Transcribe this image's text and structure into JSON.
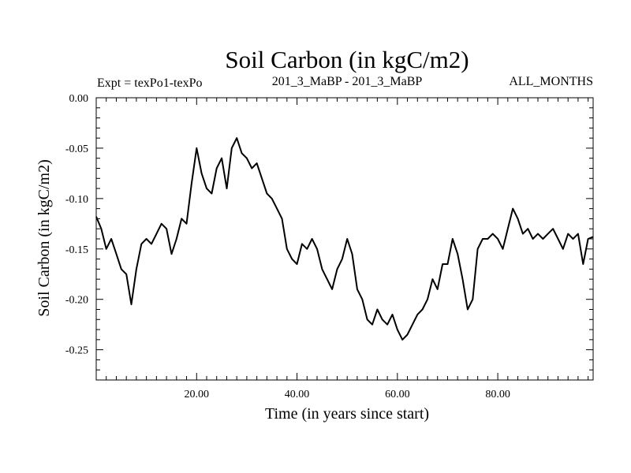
{
  "chart_data": {
    "type": "line",
    "title": "Soil Carbon (in kgC/m2)",
    "subtitle_left": "Expt = texPo1-texPo",
    "subtitle_center": "201_3_MaBP - 201_3_MaBP",
    "subtitle_right": "ALL_MONTHS",
    "xlabel": "Time (in years since start)",
    "ylabel": "Soil Carbon (in kgC/m2)",
    "xlim": [
      0,
      99
    ],
    "ylim": [
      -0.28,
      0.0
    ],
    "x_ticks": [
      20,
      40,
      60,
      80
    ],
    "x_tick_labels": [
      "20.00",
      "40.00",
      "60.00",
      "80.00"
    ],
    "y_ticks": [
      0.0,
      -0.05,
      -0.1,
      -0.15,
      -0.2,
      -0.25
    ],
    "y_tick_labels": [
      "0.00",
      "-0.05",
      "-0.10",
      "-0.15",
      "-0.20",
      "-0.25"
    ],
    "grid": false,
    "line_color": "#000000",
    "series": [
      {
        "x": [
          0,
          1,
          2,
          3,
          4,
          5,
          6,
          7,
          8,
          9,
          10,
          11,
          12,
          13,
          14,
          15,
          16,
          17,
          18,
          19,
          20,
          21,
          22,
          23,
          24,
          25,
          26,
          27,
          28,
          29,
          30,
          31,
          32,
          33,
          34,
          35,
          36,
          37,
          38,
          39,
          40,
          41,
          42,
          43,
          44,
          45,
          46,
          47,
          48,
          49,
          50,
          51,
          52,
          53,
          54,
          55,
          56,
          57,
          58,
          59,
          60,
          61,
          62,
          63,
          64,
          65,
          66,
          67,
          68,
          69,
          70,
          71,
          72,
          73,
          74,
          75,
          76,
          77,
          78,
          79,
          80,
          81,
          82,
          83,
          84,
          85,
          86,
          87,
          88,
          89,
          90,
          91,
          92,
          93,
          94,
          95,
          96,
          97,
          98,
          99
        ],
        "values": [
          -0.118,
          -0.13,
          -0.15,
          -0.14,
          -0.155,
          -0.17,
          -0.175,
          -0.205,
          -0.17,
          -0.145,
          -0.14,
          -0.145,
          -0.135,
          -0.125,
          -0.13,
          -0.155,
          -0.14,
          -0.12,
          -0.125,
          -0.085,
          -0.05,
          -0.075,
          -0.09,
          -0.095,
          -0.07,
          -0.06,
          -0.09,
          -0.05,
          -0.04,
          -0.055,
          -0.06,
          -0.07,
          -0.065,
          -0.08,
          -0.095,
          -0.1,
          -0.11,
          -0.12,
          -0.15,
          -0.16,
          -0.165,
          -0.145,
          -0.15,
          -0.14,
          -0.15,
          -0.17,
          -0.18,
          -0.19,
          -0.17,
          -0.16,
          -0.14,
          -0.155,
          -0.19,
          -0.2,
          -0.22,
          -0.225,
          -0.21,
          -0.22,
          -0.225,
          -0.215,
          -0.23,
          -0.24,
          -0.235,
          -0.225,
          -0.215,
          -0.21,
          -0.2,
          -0.18,
          -0.19,
          -0.165,
          -0.165,
          -0.14,
          -0.155,
          -0.18,
          -0.21,
          -0.2,
          -0.15,
          -0.14,
          -0.14,
          -0.135,
          -0.14,
          -0.15,
          -0.13,
          -0.11,
          -0.12,
          -0.135,
          -0.13,
          -0.14,
          -0.135,
          -0.14,
          -0.135,
          -0.13,
          -0.14,
          -0.15,
          -0.135,
          -0.14,
          -0.135,
          -0.165,
          -0.14,
          -0.138
        ]
      }
    ]
  }
}
